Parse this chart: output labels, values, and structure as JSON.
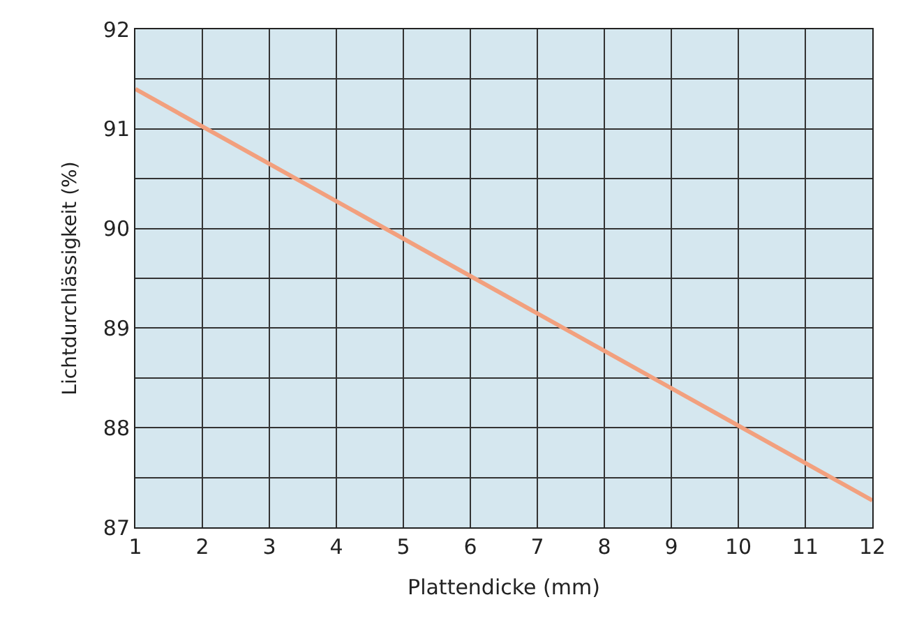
{
  "chart_data": {
    "type": "line",
    "xlabel": "Plattendicke (mm)",
    "ylabel": "Lichtdurchlässigkeit (%)",
    "x": [
      1,
      12
    ],
    "series": [
      {
        "color": "#f2a07e",
        "values": [
          91.4,
          87.27
        ]
      }
    ],
    "xlim": [
      1,
      12
    ],
    "xticks": [
      1,
      2,
      3,
      4,
      5,
      6,
      7,
      8,
      9,
      10,
      11,
      12
    ],
    "ylim": [
      87,
      92
    ],
    "yticks": [
      87,
      {
        "value": 87.5,
        "label": null
      },
      88,
      {
        "value": 88.5,
        "label": null
      },
      89,
      {
        "value": 89.5,
        "label": null
      },
      90,
      {
        "value": 90.5,
        "label": null
      },
      91,
      {
        "value": 91.5,
        "label": null
      },
      92
    ],
    "grid": true,
    "legend": false,
    "marker": "none",
    "line_style": "solid"
  }
}
